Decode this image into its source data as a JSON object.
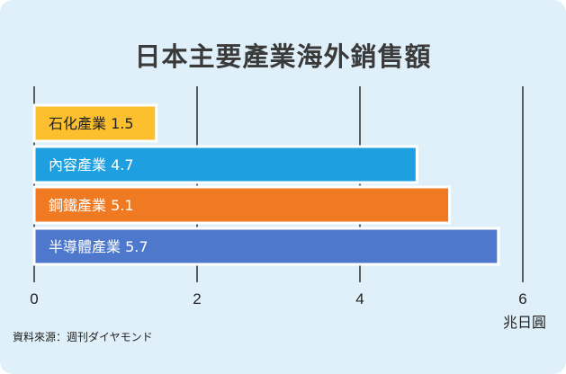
{
  "chart_data": {
    "type": "bar",
    "orientation": "horizontal",
    "title": "日本主要產業海外銷售額",
    "categories": [
      "石化產業",
      "內容產業",
      "鋼鐵產業",
      "半導體產業"
    ],
    "values": [
      1.5,
      4.7,
      5.1,
      5.7
    ],
    "bar_labels": [
      "石化產業 1.5",
      "內容產業 4.7",
      "鋼鐵產業 5.1",
      "半導體產業 5.7"
    ],
    "colors": [
      "#fcc02f",
      "#1e9fe0",
      "#f07a22",
      "#4e78cc"
    ],
    "xlim": [
      0,
      6
    ],
    "x_ticks": [
      "0",
      "2",
      "4",
      "6"
    ],
    "xlabel": "兆日圓",
    "grid": true,
    "legend": "none"
  },
  "source": "資料來源：週刊ダイヤモンド"
}
